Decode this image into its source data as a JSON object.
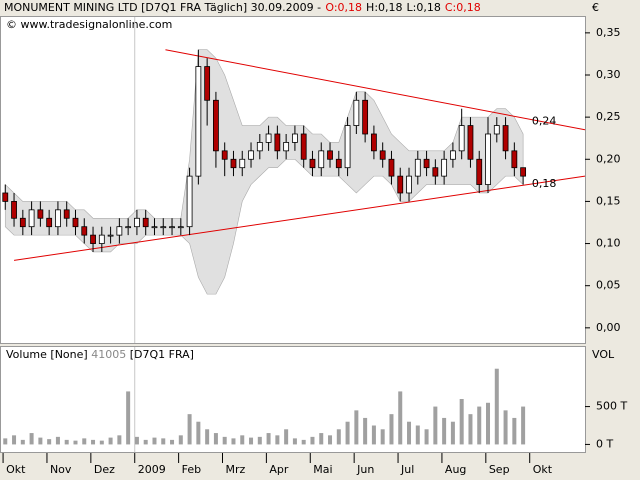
{
  "chart_data": [
    {
      "type": "candlestick",
      "title": "MONUMENT MINING LTD [D7Q1 FRA  Täglich] 30.09.2009 -",
      "header_fields": [
        {
          "label": "O:0,18",
          "color": "#e00000"
        },
        {
          "label": "H:0,18",
          "color": "#000000"
        },
        {
          "label": "L:0,18",
          "color": "#000000"
        },
        {
          "label": "C:0,18",
          "color": "#e00000"
        }
      ],
      "source": "© www.tradesignalonline.com",
      "currency": "€",
      "xlim": [
        -0.07,
        13.26
      ],
      "xticks": [
        {
          "value": 0,
          "label": "Okt"
        },
        {
          "value": 1,
          "label": "Nov"
        },
        {
          "value": 2,
          "label": "Dez"
        },
        {
          "value": 3,
          "label": "2009"
        },
        {
          "value": 4,
          "label": "Feb"
        },
        {
          "value": 5,
          "label": "Mrz"
        },
        {
          "value": 6,
          "label": "Apr"
        },
        {
          "value": 7,
          "label": "Mai"
        },
        {
          "value": 8,
          "label": "Jun"
        },
        {
          "value": 9,
          "label": "Jul"
        },
        {
          "value": 10,
          "label": "Aug"
        },
        {
          "value": 11,
          "label": "Sep"
        },
        {
          "value": 12,
          "label": "Okt"
        }
      ],
      "year_line": 3,
      "ylim": [
        -0.018,
        0.37
      ],
      "yticks": [
        {
          "value": 0,
          "label": "0,00"
        },
        {
          "value": 0.05,
          "label": "0,05"
        },
        {
          "value": 0.1,
          "label": "0,10"
        },
        {
          "value": 0.15,
          "label": "0,15"
        },
        {
          "value": 0.2,
          "label": "0,20"
        },
        {
          "value": 0.25,
          "label": "0,25"
        },
        {
          "value": 0.3,
          "label": "0,30"
        },
        {
          "value": 0.35,
          "label": "0,35"
        }
      ],
      "up_color": "#ffffff",
      "down_color": "#b00000",
      "band_color": "#e0e0e0",
      "trend_color": "#e00000",
      "x": [
        0.05,
        0.25,
        0.45,
        0.65,
        0.85,
        1.05,
        1.25,
        1.45,
        1.65,
        1.85,
        2.05,
        2.25,
        2.45,
        2.65,
        2.85,
        3.05,
        3.25,
        3.45,
        3.65,
        3.85,
        4.05,
        4.25,
        4.45,
        4.65,
        4.85,
        5.05,
        5.25,
        5.45,
        5.65,
        5.85,
        6.05,
        6.25,
        6.45,
        6.65,
        6.85,
        7.05,
        7.25,
        7.45,
        7.65,
        7.85,
        8.05,
        8.25,
        8.45,
        8.65,
        8.85,
        9.05,
        9.25,
        9.45,
        9.65,
        9.85,
        10.05,
        10.25,
        10.45,
        10.65,
        10.85,
        11.05,
        11.25,
        11.45,
        11.65,
        11.85
      ],
      "open": [
        0.16,
        0.15,
        0.13,
        0.12,
        0.14,
        0.13,
        0.12,
        0.14,
        0.13,
        0.12,
        0.11,
        0.1,
        0.11,
        0.11,
        0.12,
        0.12,
        0.13,
        0.12,
        0.12,
        0.12,
        0.12,
        0.12,
        0.18,
        0.31,
        0.27,
        0.21,
        0.2,
        0.19,
        0.2,
        0.21,
        0.22,
        0.23,
        0.21,
        0.22,
        0.23,
        0.2,
        0.19,
        0.21,
        0.2,
        0.19,
        0.24,
        0.27,
        0.23,
        0.21,
        0.2,
        0.18,
        0.16,
        0.18,
        0.2,
        0.19,
        0.18,
        0.2,
        0.21,
        0.24,
        0.2,
        0.17,
        0.23,
        0.24,
        0.21,
        0.19
      ],
      "high": [
        0.17,
        0.16,
        0.14,
        0.15,
        0.15,
        0.14,
        0.15,
        0.15,
        0.14,
        0.13,
        0.12,
        0.12,
        0.12,
        0.13,
        0.13,
        0.14,
        0.14,
        0.13,
        0.13,
        0.13,
        0.13,
        0.19,
        0.33,
        0.32,
        0.28,
        0.22,
        0.21,
        0.21,
        0.22,
        0.23,
        0.24,
        0.24,
        0.23,
        0.24,
        0.24,
        0.21,
        0.22,
        0.22,
        0.21,
        0.25,
        0.28,
        0.28,
        0.24,
        0.22,
        0.21,
        0.19,
        0.19,
        0.21,
        0.21,
        0.2,
        0.21,
        0.22,
        0.26,
        0.25,
        0.21,
        0.25,
        0.25,
        0.25,
        0.22,
        0.19
      ],
      "low": [
        0.14,
        0.12,
        0.11,
        0.11,
        0.12,
        0.11,
        0.11,
        0.12,
        0.11,
        0.1,
        0.09,
        0.09,
        0.1,
        0.1,
        0.11,
        0.11,
        0.11,
        0.11,
        0.11,
        0.11,
        0.11,
        0.11,
        0.17,
        0.24,
        0.19,
        0.18,
        0.18,
        0.18,
        0.19,
        0.2,
        0.21,
        0.2,
        0.2,
        0.21,
        0.19,
        0.18,
        0.18,
        0.19,
        0.18,
        0.18,
        0.23,
        0.22,
        0.2,
        0.19,
        0.17,
        0.15,
        0.15,
        0.17,
        0.18,
        0.17,
        0.17,
        0.19,
        0.2,
        0.19,
        0.16,
        0.16,
        0.22,
        0.2,
        0.18,
        0.17
      ],
      "close": [
        0.15,
        0.13,
        0.12,
        0.14,
        0.13,
        0.12,
        0.14,
        0.13,
        0.12,
        0.11,
        0.1,
        0.11,
        0.11,
        0.12,
        0.12,
        0.13,
        0.12,
        0.12,
        0.12,
        0.12,
        0.12,
        0.18,
        0.31,
        0.27,
        0.21,
        0.2,
        0.19,
        0.2,
        0.21,
        0.22,
        0.23,
        0.21,
        0.22,
        0.23,
        0.2,
        0.19,
        0.21,
        0.2,
        0.19,
        0.24,
        0.27,
        0.23,
        0.21,
        0.2,
        0.18,
        0.16,
        0.18,
        0.2,
        0.19,
        0.18,
        0.2,
        0.21,
        0.24,
        0.2,
        0.17,
        0.23,
        0.24,
        0.21,
        0.19,
        0.18
      ],
      "band_upper": [
        0.17,
        0.16,
        0.15,
        0.15,
        0.15,
        0.15,
        0.15,
        0.15,
        0.14,
        0.14,
        0.13,
        0.13,
        0.13,
        0.13,
        0.13,
        0.14,
        0.14,
        0.13,
        0.13,
        0.13,
        0.13,
        0.2,
        0.33,
        0.33,
        0.32,
        0.3,
        0.27,
        0.24,
        0.24,
        0.24,
        0.25,
        0.25,
        0.24,
        0.24,
        0.24,
        0.23,
        0.23,
        0.22,
        0.22,
        0.25,
        0.28,
        0.28,
        0.27,
        0.25,
        0.23,
        0.22,
        0.21,
        0.21,
        0.21,
        0.21,
        0.21,
        0.22,
        0.25,
        0.25,
        0.25,
        0.25,
        0.26,
        0.26,
        0.25,
        0.23
      ],
      "band_lower": [
        0.12,
        0.11,
        0.11,
        0.11,
        0.11,
        0.11,
        0.11,
        0.11,
        0.11,
        0.1,
        0.09,
        0.09,
        0.09,
        0.1,
        0.1,
        0.1,
        0.11,
        0.11,
        0.11,
        0.11,
        0.11,
        0.1,
        0.06,
        0.04,
        0.04,
        0.06,
        0.1,
        0.15,
        0.17,
        0.18,
        0.19,
        0.19,
        0.2,
        0.2,
        0.19,
        0.18,
        0.18,
        0.18,
        0.18,
        0.17,
        0.16,
        0.17,
        0.18,
        0.18,
        0.17,
        0.15,
        0.15,
        0.16,
        0.17,
        0.17,
        0.17,
        0.17,
        0.17,
        0.17,
        0.16,
        0.16,
        0.17,
        0.18,
        0.18,
        0.17
      ],
      "trendlines": [
        {
          "x": [
            3.7,
            13.26
          ],
          "values": [
            0.33,
            0.235
          ]
        },
        {
          "x": [
            0.25,
            13.26
          ],
          "values": [
            0.08,
            0.18
          ]
        }
      ],
      "annotations": [
        {
          "label": "0,24",
          "x": 12.05,
          "value": 0.24
        },
        {
          "label": "0,18",
          "x": 12.05,
          "value": 0.18
        }
      ]
    },
    {
      "type": "bar",
      "title": "Volume [None]",
      "last_value": "41005",
      "symbol": "[D7Q1 FRA]",
      "axis_label": "VOL",
      "color": "#a0a0a0",
      "ylim": [
        -100,
        1300
      ],
      "yticks": [
        {
          "value": 0,
          "label": "0 T"
        },
        {
          "value": 500,
          "label": "500 T"
        }
      ],
      "values": [
        80,
        120,
        60,
        150,
        90,
        70,
        100,
        60,
        50,
        80,
        60,
        50,
        90,
        120,
        700,
        100,
        60,
        90,
        80,
        60,
        120,
        400,
        300,
        200,
        150,
        100,
        80,
        120,
        90,
        100,
        150,
        120,
        200,
        80,
        60,
        100,
        150,
        120,
        200,
        300,
        450,
        350,
        250,
        200,
        400,
        700,
        300,
        250,
        200,
        500,
        350,
        300,
        600,
        400,
        500,
        550,
        1000,
        450,
        350,
        500
      ]
    }
  ]
}
